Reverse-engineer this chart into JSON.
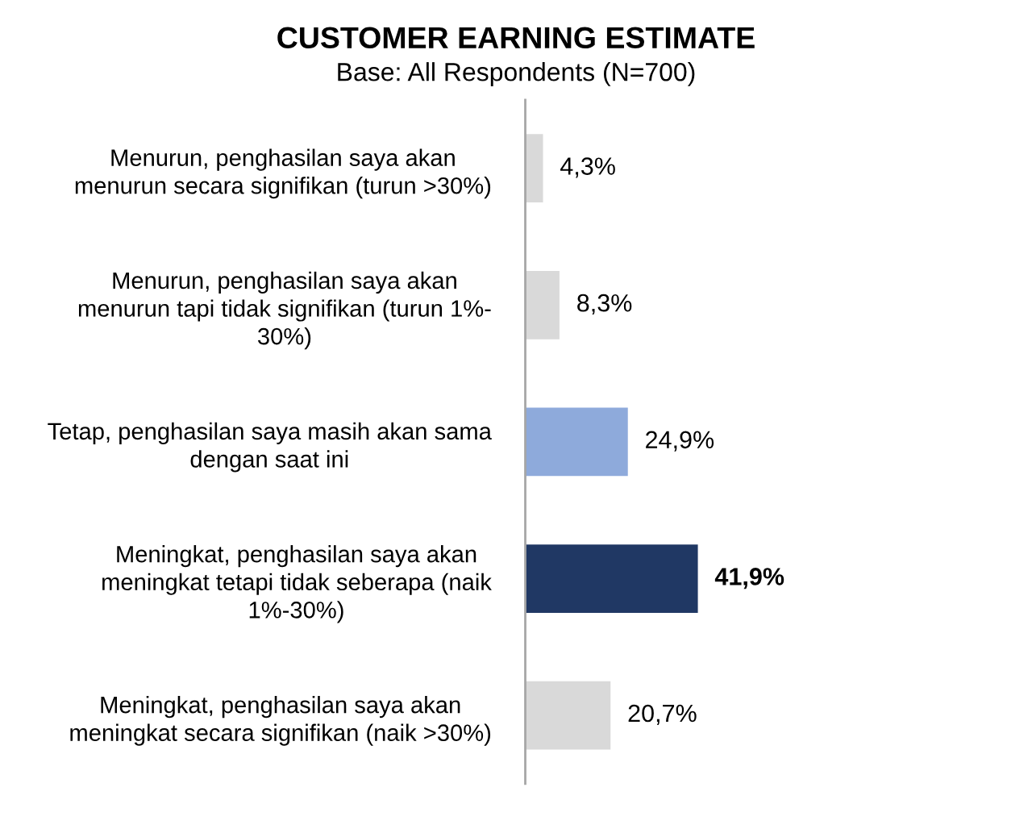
{
  "chart_data": {
    "type": "bar",
    "orientation": "horizontal",
    "title": "CUSTOMER EARNING ESTIMATE",
    "subtitle": "Base: All Respondents (N=700)",
    "categories": [
      "Menurun, penghasilan saya akan\nmenurun secara signifikan (turun >30%)",
      "Menurun, penghasilan saya akan\nmenurun tapi tidak signifikan (turun 1%-\n30%)",
      "Tetap, penghasilan saya masih akan sama\ndengan saat ini",
      "Meningkat, penghasilan saya akan\nmeningkat tetapi tidak seberapa (naik\n1%-30%)",
      "Meningkat, penghasilan saya akan\nmeningkat secara signifikan (naik >30%)"
    ],
    "values": [
      4.3,
      8.3,
      24.9,
      41.9,
      20.7
    ],
    "colors": [
      "#d9d9d9",
      "#d9d9d9",
      "#8eaadb",
      "#203864",
      "#d9d9d9"
    ],
    "value_labels": [
      "4,3%",
      "8,3%",
      "24,9%",
      "41,9%",
      "20,7%"
    ],
    "tick_labels": "y"
  }
}
